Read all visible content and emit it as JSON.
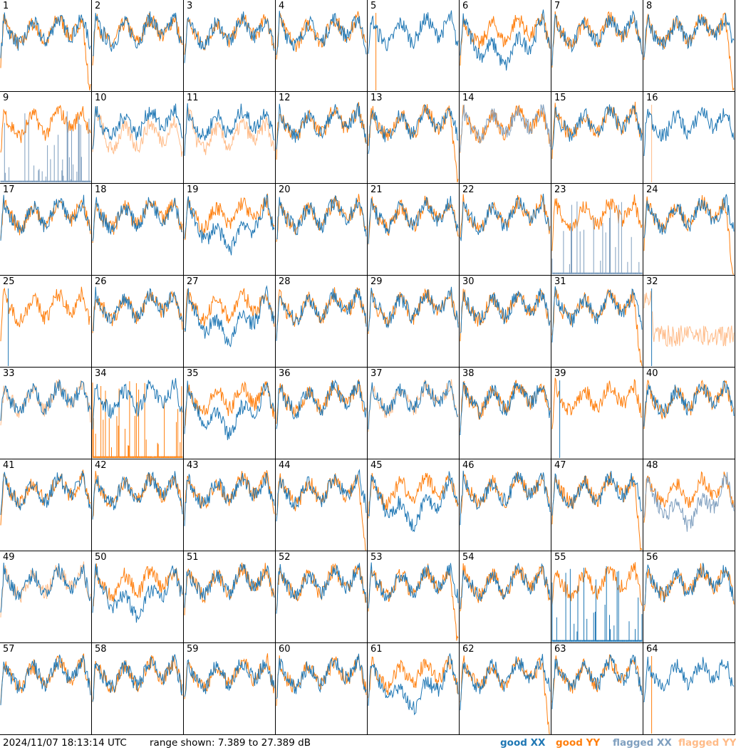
{
  "footer": {
    "timestamp": "2024/11/07 18:13:14 UTC",
    "range": "range shown: 7.389 to 27.389 dB",
    "legend": {
      "good_xx": "good XX",
      "good_yy": "good YY",
      "flagged_xx": "flagged XX",
      "flagged_yy": "flagged YY"
    }
  },
  "colors": {
    "good_xx": "#1f77b4",
    "good_yy": "#ff7f0e",
    "flagged_xx": "#7f9fbf",
    "flagged_yy": "#ffbb88"
  },
  "chart_data": {
    "type": "line",
    "grid_rows": 8,
    "grid_cols": 8,
    "ylim": [
      7.389,
      27.389
    ],
    "y_unit": "dB",
    "panels": [
      {
        "id": "1",
        "xx": "good",
        "yy": "good",
        "xx_shape": "normal",
        "yy_shape": "rolloff"
      },
      {
        "id": "2",
        "xx": "good",
        "yy": "good",
        "xx_shape": "normal",
        "yy_shape": "normal"
      },
      {
        "id": "3",
        "xx": "good",
        "yy": "good",
        "xx_shape": "normal",
        "yy_shape": "normal"
      },
      {
        "id": "4",
        "xx": "good",
        "yy": "good",
        "xx_shape": "normal",
        "yy_shape": "normal"
      },
      {
        "id": "5",
        "xx": "good",
        "yy": "good",
        "xx_shape": "normal",
        "yy_shape": "spike"
      },
      {
        "id": "6",
        "xx": "good",
        "yy": "good",
        "xx_shape": "dip",
        "yy_shape": "normal"
      },
      {
        "id": "7",
        "xx": "good",
        "yy": "good",
        "xx_shape": "normal",
        "yy_shape": "normal"
      },
      {
        "id": "8",
        "xx": "good",
        "yy": "good",
        "xx_shape": "normal",
        "yy_shape": "rolloff"
      },
      {
        "id": "9",
        "xx": "flagged",
        "yy": "good",
        "xx_shape": "spikes",
        "yy_shape": "normal"
      },
      {
        "id": "10",
        "xx": "good",
        "yy": "flagged",
        "xx_shape": "normal",
        "yy_shape": "low"
      },
      {
        "id": "11",
        "xx": "good",
        "yy": "flagged",
        "xx_shape": "normal",
        "yy_shape": "low"
      },
      {
        "id": "12",
        "xx": "good",
        "yy": "good",
        "xx_shape": "normal",
        "yy_shape": "normal"
      },
      {
        "id": "13",
        "xx": "good",
        "yy": "good",
        "xx_shape": "normal",
        "yy_shape": "rolloff"
      },
      {
        "id": "14",
        "xx": "flagged",
        "yy": "good",
        "xx_shape": "normal",
        "yy_shape": "normal"
      },
      {
        "id": "15",
        "xx": "good",
        "yy": "good",
        "xx_shape": "normal",
        "yy_shape": "normal"
      },
      {
        "id": "16",
        "xx": "good",
        "yy": "flagged",
        "xx_shape": "normal",
        "yy_shape": "spike"
      },
      {
        "id": "17",
        "xx": "good",
        "yy": "good",
        "xx_shape": "normal",
        "yy_shape": "normal"
      },
      {
        "id": "18",
        "xx": "good",
        "yy": "good",
        "xx_shape": "normal",
        "yy_shape": "normal"
      },
      {
        "id": "19",
        "xx": "good",
        "yy": "good",
        "xx_shape": "dip",
        "yy_shape": "normal"
      },
      {
        "id": "20",
        "xx": "good",
        "yy": "good",
        "xx_shape": "normal",
        "yy_shape": "normal"
      },
      {
        "id": "21",
        "xx": "good",
        "yy": "good",
        "xx_shape": "normal",
        "yy_shape": "normal"
      },
      {
        "id": "22",
        "xx": "good",
        "yy": "good",
        "xx_shape": "normal",
        "yy_shape": "normal"
      },
      {
        "id": "23",
        "xx": "flagged",
        "yy": "good",
        "xx_shape": "noise",
        "yy_shape": "normal"
      },
      {
        "id": "24",
        "xx": "good",
        "yy": "good",
        "xx_shape": "normal",
        "yy_shape": "rolloff"
      },
      {
        "id": "25",
        "xx": "good",
        "yy": "good",
        "xx_shape": "spike",
        "yy_shape": "normal"
      },
      {
        "id": "26",
        "xx": "good",
        "yy": "good",
        "xx_shape": "normal",
        "yy_shape": "normal"
      },
      {
        "id": "27",
        "xx": "good",
        "yy": "good",
        "xx_shape": "dip",
        "yy_shape": "normal"
      },
      {
        "id": "28",
        "xx": "good",
        "yy": "good",
        "xx_shape": "normal",
        "yy_shape": "normal"
      },
      {
        "id": "29",
        "xx": "good",
        "yy": "good",
        "xx_shape": "normal",
        "yy_shape": "normal"
      },
      {
        "id": "30",
        "xx": "good",
        "yy": "good",
        "xx_shape": "normal",
        "yy_shape": "normal"
      },
      {
        "id": "31",
        "xx": "good",
        "yy": "good",
        "xx_shape": "normal",
        "yy_shape": "rolloff"
      },
      {
        "id": "32",
        "xx": "good",
        "yy": "flagged",
        "xx_shape": "spike",
        "yy_shape": "noisy"
      },
      {
        "id": "33",
        "xx": "good",
        "yy": "flagged",
        "xx_shape": "normal",
        "yy_shape": "normal"
      },
      {
        "id": "34",
        "xx": "good",
        "yy": "good",
        "xx_shape": "normal",
        "yy_shape": "spikes"
      },
      {
        "id": "35",
        "xx": "good",
        "yy": "good",
        "xx_shape": "dip",
        "yy_shape": "normal"
      },
      {
        "id": "36",
        "xx": "good",
        "yy": "good",
        "xx_shape": "normal",
        "yy_shape": "normal"
      },
      {
        "id": "37",
        "xx": "good",
        "yy": "flagged",
        "xx_shape": "normal",
        "yy_shape": "normal"
      },
      {
        "id": "38",
        "xx": "good",
        "yy": "good",
        "xx_shape": "normal",
        "yy_shape": "normal"
      },
      {
        "id": "39",
        "xx": "good",
        "yy": "good",
        "xx_shape": "spike",
        "yy_shape": "normal"
      },
      {
        "id": "40",
        "xx": "good",
        "yy": "good",
        "xx_shape": "normal",
        "yy_shape": "normal"
      },
      {
        "id": "41",
        "xx": "good",
        "yy": "good",
        "xx_shape": "normal",
        "yy_shape": "normal"
      },
      {
        "id": "42",
        "xx": "good",
        "yy": "good",
        "xx_shape": "normal",
        "yy_shape": "normal"
      },
      {
        "id": "43",
        "xx": "good",
        "yy": "good",
        "xx_shape": "normal",
        "yy_shape": "normal"
      },
      {
        "id": "44",
        "xx": "good",
        "yy": "good",
        "xx_shape": "normal",
        "yy_shape": "rolloff"
      },
      {
        "id": "45",
        "xx": "good",
        "yy": "good",
        "xx_shape": "dip",
        "yy_shape": "normal"
      },
      {
        "id": "46",
        "xx": "good",
        "yy": "good",
        "xx_shape": "normal",
        "yy_shape": "normal"
      },
      {
        "id": "47",
        "xx": "good",
        "yy": "good",
        "xx_shape": "normal",
        "yy_shape": "rolloff"
      },
      {
        "id": "48",
        "xx": "flagged",
        "yy": "good",
        "xx_shape": "dip",
        "yy_shape": "normal"
      },
      {
        "id": "49",
        "xx": "good",
        "yy": "flagged",
        "xx_shape": "normal",
        "yy_shape": "normal"
      },
      {
        "id": "50",
        "xx": "good",
        "yy": "good",
        "xx_shape": "dip",
        "yy_shape": "normal"
      },
      {
        "id": "51",
        "xx": "good",
        "yy": "good",
        "xx_shape": "normal",
        "yy_shape": "normal"
      },
      {
        "id": "52",
        "xx": "good",
        "yy": "good",
        "xx_shape": "normal",
        "yy_shape": "normal"
      },
      {
        "id": "53",
        "xx": "good",
        "yy": "good",
        "xx_shape": "normal",
        "yy_shape": "rolloff"
      },
      {
        "id": "54",
        "xx": "good",
        "yy": "good",
        "xx_shape": "normal",
        "yy_shape": "normal"
      },
      {
        "id": "55",
        "xx": "good",
        "yy": "good",
        "xx_shape": "spikes",
        "yy_shape": "normal"
      },
      {
        "id": "56",
        "xx": "good",
        "yy": "good",
        "xx_shape": "normal",
        "yy_shape": "normal"
      },
      {
        "id": "57",
        "xx": "good",
        "yy": "good",
        "xx_shape": "normal",
        "yy_shape": "normal"
      },
      {
        "id": "58",
        "xx": "good",
        "yy": "good",
        "xx_shape": "normal",
        "yy_shape": "normal"
      },
      {
        "id": "59",
        "xx": "good",
        "yy": "good",
        "xx_shape": "normal",
        "yy_shape": "normal"
      },
      {
        "id": "60",
        "xx": "good",
        "yy": "good",
        "xx_shape": "normal",
        "yy_shape": "normal"
      },
      {
        "id": "61",
        "xx": "good",
        "yy": "good",
        "xx_shape": "dip",
        "yy_shape": "normal"
      },
      {
        "id": "62",
        "xx": "good",
        "yy": "good",
        "xx_shape": "normal",
        "yy_shape": "rolloff"
      },
      {
        "id": "63",
        "xx": "good",
        "yy": "good",
        "xx_shape": "normal",
        "yy_shape": "normal"
      },
      {
        "id": "64",
        "xx": "good",
        "yy": "good",
        "xx_shape": "normal",
        "yy_shape": "spike"
      }
    ]
  }
}
